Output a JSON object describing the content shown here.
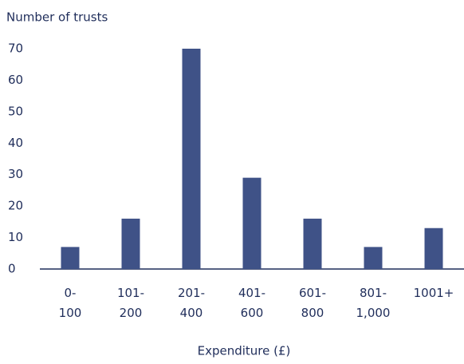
{
  "chart_data": {
    "type": "bar",
    "y_label": "Number of trusts",
    "x_label": "Expenditure (£)",
    "categories": [
      "0-\n100",
      "101-\n200",
      "201-\n400",
      "401-\n600",
      "601-\n800",
      "801-\n1,000",
      "1001+"
    ],
    "values": [
      7,
      16,
      70,
      29,
      16,
      7,
      13
    ],
    "color": "#3f5287",
    "ylim": [
      0,
      70
    ],
    "yticks": [
      0,
      10,
      20,
      30,
      40,
      50,
      60,
      70
    ],
    "grid": false
  }
}
